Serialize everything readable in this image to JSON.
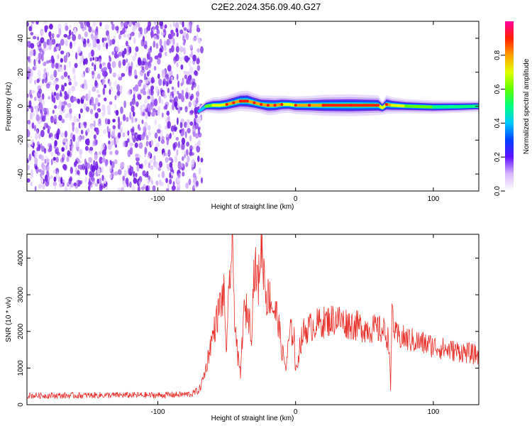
{
  "title": "C2E2.2024.356.09.40.G27",
  "top_panel": {
    "xlabel": "Height of straight line (km)",
    "ylabel": "Frequency (Hz)",
    "colorbar_label": "Normalized spectral amplitude",
    "colorbar_ticks": [
      "0.0",
      "0.2",
      "0.4",
      "0.6",
      "0.8"
    ]
  },
  "bottom_panel": {
    "xlabel": "Height of straight line (km)",
    "ylabel": "SNR (10 * v/v)"
  },
  "colors": {
    "snr_line": "#e8302a",
    "noise": "#7a2be8",
    "frame": "#000000"
  },
  "chart_data": [
    {
      "type": "heatmap",
      "title": "C2E2.2024.356.09.40.G27",
      "xlabel": "Height of straight line (km)",
      "ylabel": "Frequency (Hz)",
      "xlim": [
        -195,
        133
      ],
      "ylim": [
        -50,
        50
      ],
      "xticks": [
        -100,
        0,
        100
      ],
      "yticks": [
        -40,
        -20,
        0,
        20,
        40
      ],
      "colorbar": {
        "label": "Normalized spectral amplitude",
        "range": [
          0,
          1
        ],
        "ticks": [
          0.0,
          0.2,
          0.4,
          0.6,
          0.8
        ]
      },
      "noise_region_x": [
        -195,
        -68
      ],
      "signal_track": {
        "x": [
          -70,
          -65,
          -60,
          -55,
          -50,
          -45,
          -40,
          -35,
          -30,
          -25,
          -20,
          -15,
          -10,
          -5,
          0,
          10,
          20,
          40,
          60,
          63,
          66,
          70,
          80,
          100,
          120,
          133
        ],
        "freq": [
          -3,
          0,
          0.5,
          0.5,
          1,
          2,
          3,
          3,
          2,
          1,
          0.5,
          0.5,
          1,
          1,
          0.5,
          0.5,
          0.5,
          0.5,
          0.5,
          -1,
          1,
          0.5,
          0,
          -0.5,
          -0.3,
          0
        ],
        "amplitude": [
          0.3,
          0.55,
          0.7,
          0.75,
          0.8,
          0.85,
          0.9,
          0.95,
          0.85,
          0.8,
          0.9,
          0.85,
          0.8,
          0.75,
          0.8,
          0.85,
          0.95,
          1.0,
          0.9,
          0.6,
          0.85,
          0.75,
          0.65,
          0.6,
          0.55,
          0.5
        ]
      }
    },
    {
      "type": "line",
      "xlabel": "Height of straight line (km)",
      "ylabel": "SNR (10 * v/v)",
      "xlim": [
        -195,
        133
      ],
      "ylim": [
        0,
        4650
      ],
      "xticks": [
        -100,
        0,
        100
      ],
      "yticks": [
        0,
        1000,
        2000,
        3000,
        4000
      ],
      "series": [
        {
          "x": [
            -195,
            -180,
            -160,
            -140,
            -120,
            -100,
            -90,
            -80,
            -75,
            -70,
            -68,
            -65,
            -62,
            -58,
            -55,
            -52,
            -50,
            -48,
            -46,
            -44,
            -42,
            -40,
            -38,
            -35,
            -32,
            -30,
            -27,
            -25,
            -23,
            -21,
            -19,
            -16,
            -13,
            -10,
            -7,
            -4,
            -1,
            0,
            3,
            6,
            10,
            15,
            20,
            25,
            30,
            35,
            40,
            50,
            60,
            65,
            68,
            69,
            70,
            71,
            72,
            75,
            80,
            90,
            100,
            110,
            120,
            133
          ],
          "y": [
            250,
            250,
            250,
            260,
            260,
            260,
            270,
            280,
            300,
            400,
            600,
            1000,
            1600,
            2200,
            2700,
            3000,
            1400,
            3400,
            4200,
            2300,
            1300,
            800,
            2400,
            2600,
            2000,
            3800,
            3300,
            4400,
            3700,
            2900,
            3000,
            2600,
            2400,
            1500,
            1000,
            2000,
            1900,
            800,
            1600,
            2000,
            2100,
            2200,
            2250,
            2300,
            2350,
            2250,
            2200,
            2100,
            2050,
            2000,
            1700,
            300,
            2700,
            2300,
            1900,
            1850,
            1800,
            1700,
            1600,
            1500,
            1450,
            1350
          ]
        }
      ]
    }
  ]
}
